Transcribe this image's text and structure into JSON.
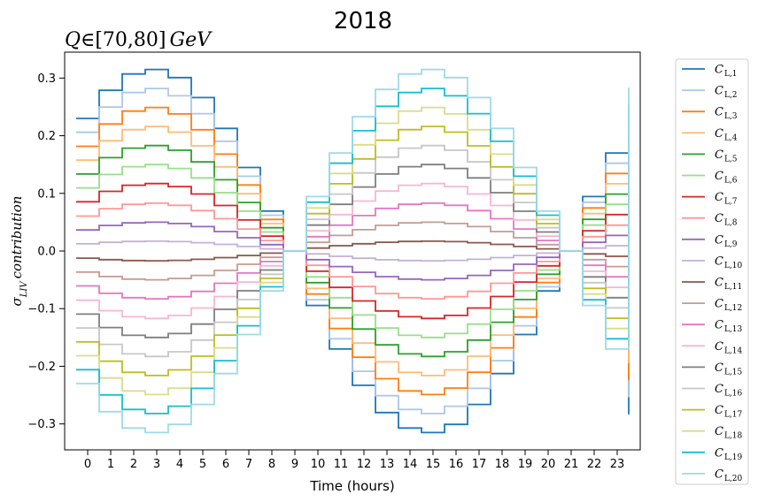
{
  "chart_data": {
    "type": "line",
    "drawstyle": "steps-post",
    "title": "2018",
    "subtitle": "Q∈[70,80] GeV",
    "xlabel": "Time (hours)",
    "ylabel": "σ_LIV contribution",
    "xlim": [
      -1,
      24
    ],
    "ylim": [
      -0.345,
      0.345
    ],
    "x": [
      0,
      1,
      2,
      3,
      4,
      5,
      6,
      7,
      8,
      9,
      10,
      11,
      12,
      13,
      14,
      15,
      16,
      17,
      18,
      19,
      20,
      21,
      22,
      23
    ],
    "xticks": [
      "0",
      "1",
      "2",
      "3",
      "4",
      "5",
      "6",
      "7",
      "8",
      "9",
      "10",
      "11",
      "12",
      "13",
      "14",
      "15",
      "16",
      "17",
      "18",
      "19",
      "20",
      "21",
      "22",
      "23"
    ],
    "yticks": [
      "−0.3",
      "−0.2",
      "−0.1",
      "0.0",
      "0.1",
      "0.2",
      "0.3"
    ],
    "ytick_values": [
      -0.3,
      -0.2,
      -0.1,
      0.0,
      0.1,
      0.2,
      0.3
    ],
    "grid": false,
    "legend_position": "outside-right",
    "profile": [
      -0.73,
      -0.885,
      -0.975,
      -1.0,
      -0.955,
      -0.845,
      -0.675,
      -0.46,
      -0.22,
      0.0,
      0.3,
      0.54,
      0.74,
      0.89,
      0.975,
      1.0,
      0.955,
      0.845,
      0.675,
      0.46,
      0.22,
      0.0,
      -0.3,
      -0.54
    ],
    "series": [
      {
        "name": "C",
        "sub": "L,1",
        "color": "#1f77b4",
        "amplitude": -0.315
      },
      {
        "name": "C",
        "sub": "L,2",
        "color": "#aec7e8",
        "amplitude": -0.282
      },
      {
        "name": "C",
        "sub": "L,3",
        "color": "#ff7f0e",
        "amplitude": -0.249
      },
      {
        "name": "C",
        "sub": "L,4",
        "color": "#ffbb78",
        "amplitude": -0.216
      },
      {
        "name": "C",
        "sub": "L,5",
        "color": "#2ca02c",
        "amplitude": -0.183
      },
      {
        "name": "C",
        "sub": "L,6",
        "color": "#98df8a",
        "amplitude": -0.15
      },
      {
        "name": "C",
        "sub": "L,7",
        "color": "#d62728",
        "amplitude": -0.117
      },
      {
        "name": "C",
        "sub": "L,8",
        "color": "#ff9896",
        "amplitude": -0.083
      },
      {
        "name": "C",
        "sub": "L,9",
        "color": "#9467bd",
        "amplitude": -0.05
      },
      {
        "name": "C",
        "sub": "L,10",
        "color": "#c5b0d5",
        "amplitude": -0.017
      },
      {
        "name": "C",
        "sub": "L,11",
        "color": "#8c564b",
        "amplitude": 0.017
      },
      {
        "name": "C",
        "sub": "L,12",
        "color": "#c49c94",
        "amplitude": 0.05
      },
      {
        "name": "C",
        "sub": "L,13",
        "color": "#e377c2",
        "amplitude": 0.083
      },
      {
        "name": "C",
        "sub": "L,14",
        "color": "#f7b6d2",
        "amplitude": 0.117
      },
      {
        "name": "C",
        "sub": "L,15",
        "color": "#7f7f7f",
        "amplitude": 0.15
      },
      {
        "name": "C",
        "sub": "L,16",
        "color": "#c7c7c7",
        "amplitude": 0.183
      },
      {
        "name": "C",
        "sub": "L,17",
        "color": "#bcbd22",
        "amplitude": 0.216
      },
      {
        "name": "C",
        "sub": "L,18",
        "color": "#dbdb8d",
        "amplitude": 0.249
      },
      {
        "name": "C",
        "sub": "L,19",
        "color": "#17becf",
        "amplitude": 0.282
      },
      {
        "name": "C",
        "sub": "L,20",
        "color": "#9edae5",
        "amplitude": 0.315
      }
    ]
  }
}
